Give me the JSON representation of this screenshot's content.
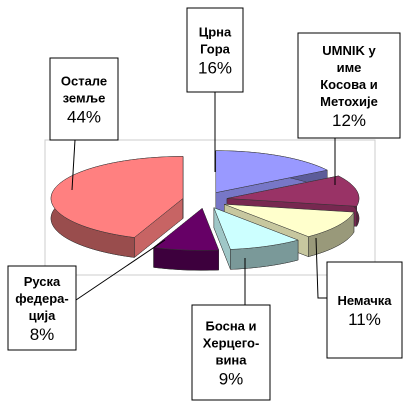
{
  "chart_data": {
    "type": "pie",
    "categories": [
      [
        "Црна",
        "Гора"
      ],
      [
        "UMNIK у",
        "име",
        "Косова и",
        "Метохије"
      ],
      [
        "Немачка"
      ],
      [
        "Босна и",
        "Херцего-",
        "вина"
      ],
      [
        "Руска",
        "федера-",
        "ција"
      ],
      [
        "Остале",
        "земље"
      ]
    ],
    "values": [
      16,
      12,
      11,
      9,
      8,
      44
    ],
    "value_labels": [
      "16%",
      "12%",
      "11%",
      "9%",
      "8%",
      "44%"
    ],
    "colors": [
      "#9999ff",
      "#993366",
      "#ffffcc",
      "#ccffff",
      "#660066",
      "#ff8080"
    ]
  }
}
